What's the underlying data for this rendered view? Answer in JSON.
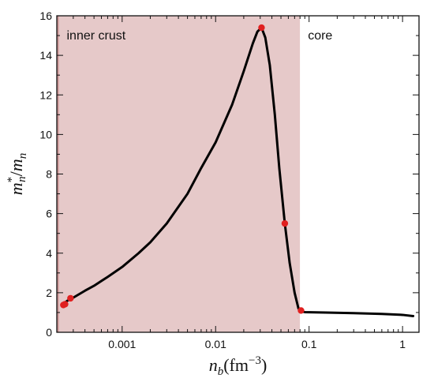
{
  "chart_data": {
    "type": "line",
    "x_scale": "log",
    "xlim": [
      0.0002,
      1.5
    ],
    "ylim": [
      0,
      16
    ],
    "x_ticks": [
      {
        "value": 0.001,
        "label": "0.001"
      },
      {
        "value": 0.01,
        "label": "0.01"
      },
      {
        "value": 0.1,
        "label": "0.1"
      },
      {
        "value": 1,
        "label": "1"
      }
    ],
    "y_ticks": [
      {
        "value": 0,
        "label": "0"
      },
      {
        "value": 2,
        "label": "2"
      },
      {
        "value": 4,
        "label": "4"
      },
      {
        "value": 6,
        "label": "6"
      },
      {
        "value": 8,
        "label": "8"
      },
      {
        "value": 10,
        "label": "10"
      },
      {
        "value": 12,
        "label": "12"
      },
      {
        "value": 14,
        "label": "14"
      },
      {
        "value": 16,
        "label": "16"
      }
    ],
    "xlabel": {
      "base": "n",
      "sub": "b",
      "unit": "(fm",
      "sup": "−3",
      "close": ")"
    },
    "ylabel": {
      "num": "m",
      "num_sup": "*",
      "num_sub": "n",
      "slash": "/",
      "den": "m",
      "den_sub": "n"
    },
    "regions": [
      {
        "name": "",
        "x_range": [
          0.0002,
          0.00021
        ],
        "color": "#c99494"
      },
      {
        "name": "inner crust",
        "x_range": [
          0.00021,
          0.08
        ],
        "color": "#e6c9c9"
      },
      {
        "name": "core",
        "x_range": [
          0.08,
          1.5
        ],
        "color": "#ffffff"
      }
    ],
    "series": [
      {
        "color": "#000000",
        "points": [
          [
            0.00023,
            1.4
          ],
          [
            0.00026,
            1.6
          ],
          [
            0.0003,
            1.75
          ],
          [
            0.0004,
            2.1
          ],
          [
            0.0005,
            2.35
          ],
          [
            0.0007,
            2.8
          ],
          [
            0.001,
            3.3
          ],
          [
            0.0015,
            4.0
          ],
          [
            0.002,
            4.55
          ],
          [
            0.003,
            5.5
          ],
          [
            0.005,
            7.0
          ],
          [
            0.007,
            8.3
          ],
          [
            0.01,
            9.6
          ],
          [
            0.015,
            11.5
          ],
          [
            0.02,
            13.2
          ],
          [
            0.025,
            14.6
          ],
          [
            0.028,
            15.2
          ],
          [
            0.031,
            15.4
          ],
          [
            0.034,
            14.9
          ],
          [
            0.038,
            13.5
          ],
          [
            0.043,
            11.0
          ],
          [
            0.048,
            8.3
          ],
          [
            0.055,
            5.5
          ],
          [
            0.062,
            3.5
          ],
          [
            0.07,
            2.0
          ],
          [
            0.077,
            1.2
          ],
          [
            0.082,
            1.05
          ],
          [
            0.09,
            1.02
          ],
          [
            0.15,
            1.0
          ],
          [
            0.3,
            0.97
          ],
          [
            0.6,
            0.93
          ],
          [
            1.0,
            0.88
          ],
          [
            1.3,
            0.82
          ]
        ]
      }
    ],
    "markers": {
      "color": "#e02020",
      "points": [
        [
          0.000235,
          1.38
        ],
        [
          0.000245,
          1.42
        ],
        [
          0.00028,
          1.72
        ],
        [
          0.031,
          15.4
        ],
        [
          0.055,
          5.5
        ],
        [
          0.082,
          1.1
        ]
      ]
    }
  }
}
